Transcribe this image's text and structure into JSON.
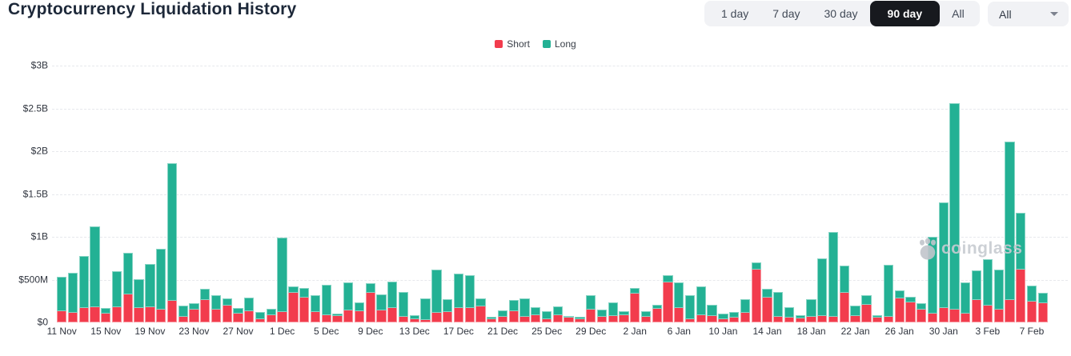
{
  "header": {
    "title": "Cryptocurrency Liquidation History",
    "range_buttons": [
      "1 day",
      "7 day",
      "30 day",
      "90 day",
      "All"
    ],
    "active_range": "90 day",
    "symbol_filter": {
      "value": "All"
    }
  },
  "legend": [
    {
      "label": "Short",
      "color": "#f23c4d"
    },
    {
      "label": "Long",
      "color": "#23b194"
    }
  ],
  "watermark": {
    "text": "coinglass"
  },
  "chart_data": {
    "type": "bar",
    "stacked": true,
    "title": "Cryptocurrency Liquidation History",
    "unit": "USD",
    "values_unit": "millions of USD",
    "ylim": [
      0,
      3000
    ],
    "grid": "dashed-horizontal",
    "legend_position": "top-center",
    "y_ticks": [
      {
        "value": 0,
        "label": "$0"
      },
      {
        "value": 500,
        "label": "$500M"
      },
      {
        "value": 1000,
        "label": "$1B"
      },
      {
        "value": 1500,
        "label": "$1.5B"
      },
      {
        "value": 2000,
        "label": "$2B"
      },
      {
        "value": 2500,
        "label": "$2.5B"
      },
      {
        "value": 3000,
        "label": "$3B"
      }
    ],
    "x_tick_step": 4,
    "x_tick_labels": [
      "11 Nov",
      "15 Nov",
      "19 Nov",
      "23 Nov",
      "27 Nov",
      "1 Dec",
      "5 Dec",
      "9 Dec",
      "13 Dec",
      "17 Dec",
      "21 Dec",
      "25 Dec",
      "29 Dec",
      "2 Jan",
      "6 Jan",
      "10 Jan",
      "14 Jan",
      "18 Jan",
      "22 Jan",
      "26 Jan",
      "30 Jan",
      "3 Feb",
      "7 Feb"
    ],
    "categories": [
      "11 Nov",
      "12 Nov",
      "13 Nov",
      "14 Nov",
      "15 Nov",
      "16 Nov",
      "17 Nov",
      "18 Nov",
      "19 Nov",
      "20 Nov",
      "21 Nov",
      "22 Nov",
      "23 Nov",
      "24 Nov",
      "25 Nov",
      "26 Nov",
      "27 Nov",
      "28 Nov",
      "29 Nov",
      "30 Nov",
      "1 Dec",
      "2 Dec",
      "3 Dec",
      "4 Dec",
      "5 Dec",
      "6 Dec",
      "7 Dec",
      "8 Dec",
      "9 Dec",
      "10 Dec",
      "11 Dec",
      "12 Dec",
      "13 Dec",
      "14 Dec",
      "15 Dec",
      "16 Dec",
      "17 Dec",
      "18 Dec",
      "19 Dec",
      "20 Dec",
      "21 Dec",
      "22 Dec",
      "23 Dec",
      "24 Dec",
      "25 Dec",
      "26 Dec",
      "27 Dec",
      "28 Dec",
      "29 Dec",
      "30 Dec",
      "31 Dec",
      "1 Jan",
      "2 Jan",
      "3 Jan",
      "4 Jan",
      "5 Jan",
      "6 Jan",
      "7 Jan",
      "8 Jan",
      "9 Jan",
      "10 Jan",
      "11 Jan",
      "12 Jan",
      "13 Jan",
      "14 Jan",
      "15 Jan",
      "16 Jan",
      "17 Jan",
      "18 Jan",
      "19 Jan",
      "20 Jan",
      "21 Jan",
      "22 Jan",
      "23 Jan",
      "24 Jan",
      "25 Jan",
      "26 Jan",
      "27 Jan",
      "28 Jan",
      "29 Jan",
      "30 Jan",
      "31 Jan",
      "1 Feb",
      "2 Feb",
      "3 Feb",
      "4 Feb",
      "5 Feb",
      "6 Feb",
      "7 Feb",
      "8 Feb"
    ],
    "series": [
      {
        "name": "Short",
        "color": "#f23c4d",
        "values": [
          130,
          110,
          165,
          178,
          100,
          180,
          330,
          165,
          178,
          146,
          248,
          70,
          150,
          265,
          150,
          200,
          100,
          133,
          37,
          87,
          124,
          342,
          286,
          118,
          87,
          78,
          140,
          130,
          348,
          140,
          165,
          62,
          40,
          31,
          109,
          124,
          165,
          171,
          186,
          40,
          68,
          133,
          62,
          84,
          40,
          87,
          56,
          37,
          146,
          68,
          78,
          84,
          332,
          62,
          155,
          466,
          171,
          40,
          84,
          78,
          37,
          56,
          115,
          621,
          286,
          62,
          53,
          47,
          68,
          71,
          68,
          342,
          78,
          202,
          53,
          62,
          280,
          233,
          146,
          99,
          165,
          146,
          99,
          258,
          196,
          146,
          265,
          615,
          242,
          224
        ]
      },
      {
        "name": "Long",
        "color": "#23b194",
        "values": [
          405,
          465,
          605,
          940,
          70,
          425,
          490,
          340,
          507,
          714,
          1607,
          130,
          74,
          135,
          165,
          85,
          70,
          162,
          81,
          78,
          870,
          77,
          108,
          192,
          354,
          31,
          326,
          103,
          112,
          185,
          307,
          289,
          44,
          255,
          509,
          149,
          400,
          385,
          94,
          28,
          78,
          131,
          211,
          96,
          93,
          106,
          22,
          31,
          164,
          87,
          161,
          46,
          65,
          62,
          47,
          84,
          295,
          277,
          335,
          130,
          62,
          62,
          155,
          87,
          102,
          286,
          118,
          37,
          205,
          674,
          988,
          316,
          118,
          115,
          25,
          606,
          93,
          62,
          78,
          895,
          1235,
          2409,
          367,
          348,
          543,
          466,
          1855,
          668,
          186,
          118
        ]
      }
    ]
  }
}
